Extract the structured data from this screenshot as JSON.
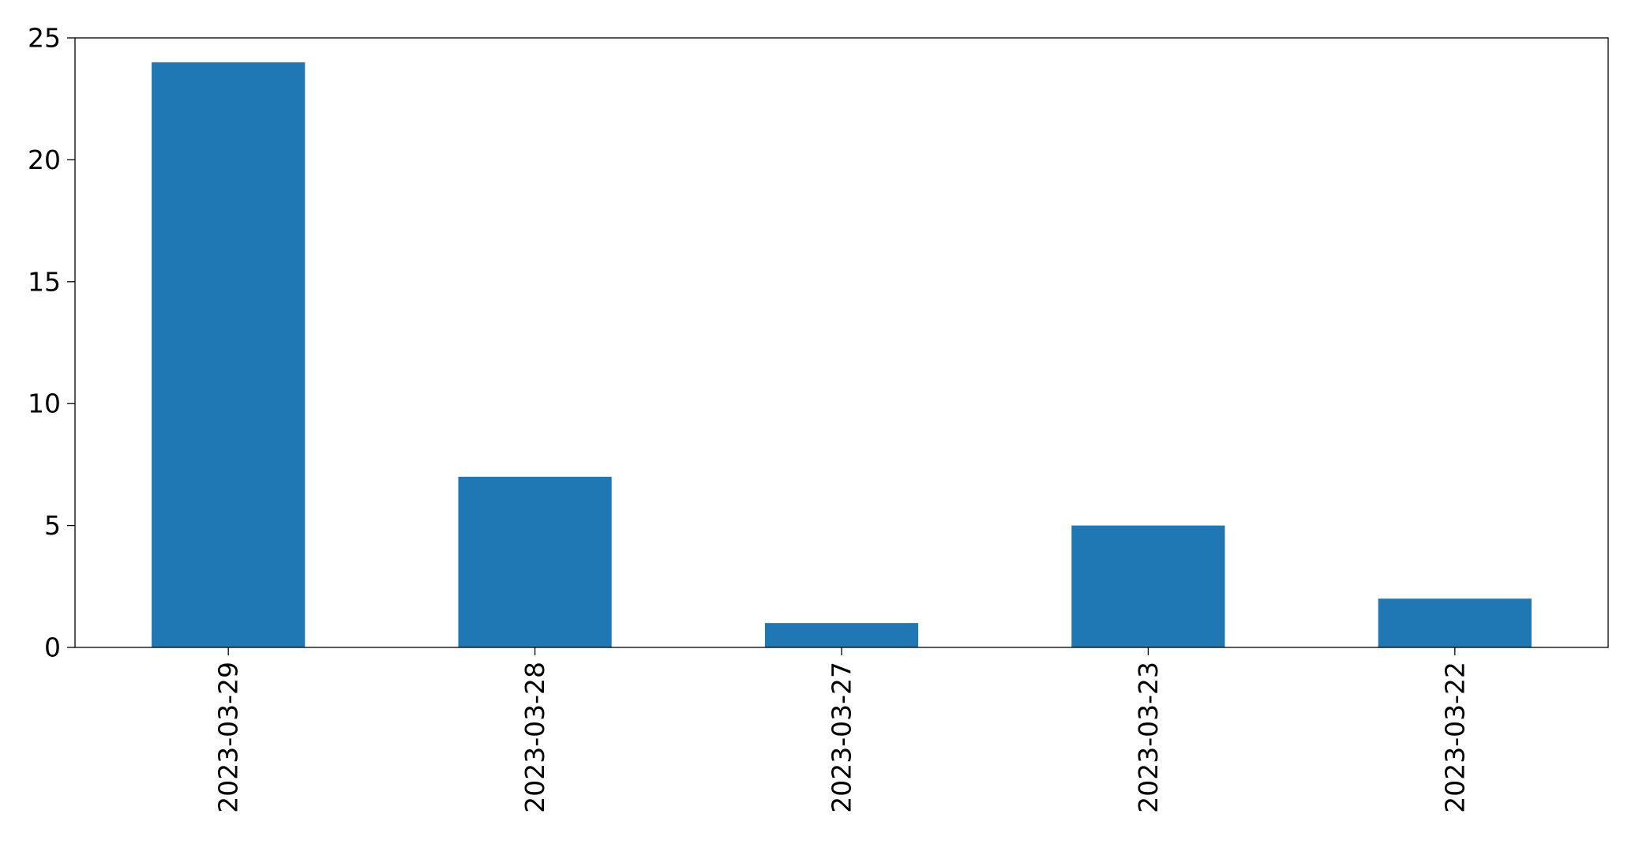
{
  "chart_data": {
    "type": "bar",
    "categories": [
      "2023-03-29",
      "2023-03-28",
      "2023-03-27",
      "2023-03-23",
      "2023-03-22"
    ],
    "values": [
      24,
      7,
      1,
      5,
      2
    ],
    "title": "",
    "xlabel": "",
    "ylabel": "",
    "ylim": [
      0,
      25
    ],
    "yticks": [
      0,
      5,
      10,
      15,
      20,
      25
    ],
    "ytick_labels": [
      "0",
      "5",
      "10",
      "15",
      "20",
      "25"
    ],
    "grid": false,
    "legend": "none",
    "bar_color": "#1f77b4",
    "x_tick_rotation": "vertical"
  }
}
